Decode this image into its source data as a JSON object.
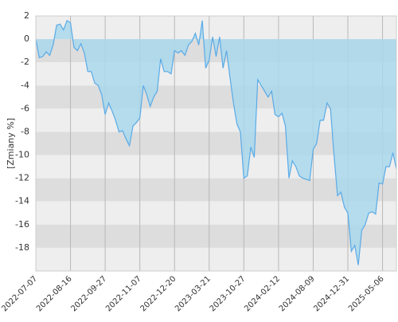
{
  "chart_data": {
    "type": "area",
    "ylabel": "[Zmiany %]",
    "categories": [
      "2022-07-07",
      null,
      null,
      null,
      null,
      null,
      null,
      null,
      null,
      null,
      "2022-08-16",
      null,
      null,
      null,
      null,
      null,
      null,
      null,
      null,
      null,
      "2022-09-27",
      null,
      null,
      null,
      null,
      null,
      null,
      null,
      null,
      null,
      "2022-11-07",
      null,
      null,
      null,
      null,
      null,
      null,
      null,
      null,
      null,
      "2022-12-20",
      null,
      null,
      null,
      null,
      null,
      null,
      null,
      null,
      null,
      "2023-03-21",
      null,
      null,
      null,
      null,
      null,
      null,
      null,
      null,
      null,
      "2023-10-27",
      null,
      null,
      null,
      null,
      null,
      null,
      null,
      null,
      null,
      "2024-02-12",
      null,
      null,
      null,
      null,
      null,
      null,
      null,
      null,
      null,
      "2024-08-09",
      null,
      null,
      null,
      null,
      null,
      null,
      null,
      null,
      null,
      "2024-12-31",
      null,
      null,
      null,
      null,
      null,
      null,
      null,
      null,
      null,
      "2025-05-06",
      null,
      null,
      null,
      null
    ],
    "values": [
      0,
      -1.6,
      -1.5,
      -1.1,
      -1.4,
      -0.5,
      1.2,
      1.3,
      0.8,
      1.6,
      1.4,
      -0.7,
      -1.0,
      -0.4,
      -1.2,
      -2.8,
      -2.8,
      -3.8,
      -4.0,
      -4.8,
      -6.5,
      -5.5,
      -6.2,
      -7.0,
      -8.0,
      -7.9,
      -8.6,
      -9.2,
      -7.5,
      -7.2,
      -6.8,
      -4.0,
      -4.8,
      -5.8,
      -5.0,
      -4.5,
      -1.7,
      -2.8,
      -2.8,
      -3.0,
      -1.0,
      -1.2,
      -1.0,
      -1.4,
      -0.5,
      -0.2,
      0.5,
      -0.5,
      1.6,
      -2.5,
      -1.8,
      0.2,
      -1.5,
      0.2,
      -2.5,
      -1.0,
      -3.3,
      -5.5,
      -7.3,
      -8.0,
      -12.0,
      -11.8,
      -9.3,
      -10.2,
      -3.5,
      -4.0,
      -4.5,
      -5.0,
      -4.5,
      -6.5,
      -6.7,
      -6.4,
      -7.5,
      -12.0,
      -10.5,
      -11.0,
      -11.8,
      -12.0,
      -12.1,
      -12.2,
      -9.5,
      -9.0,
      -7.0,
      -7.0,
      -5.5,
      -6.0,
      -10.0,
      -13.5,
      -13.2,
      -14.5,
      -15.0,
      -18.3,
      -17.8,
      -19.5,
      -16.5,
      -16.0,
      -15.0,
      -14.9,
      -15.1,
      -12.4,
      -12.5,
      -11.0,
      -11.0,
      -9.8,
      -11.2
    ],
    "color": "#5aaae6",
    "fill": "#a9d8ec",
    "ylim": [
      -20,
      2
    ],
    "yticks": [
      2,
      0,
      -2,
      -4,
      -6,
      -8,
      -10,
      -12,
      -14,
      -16,
      -18
    ],
    "grid": true
  }
}
